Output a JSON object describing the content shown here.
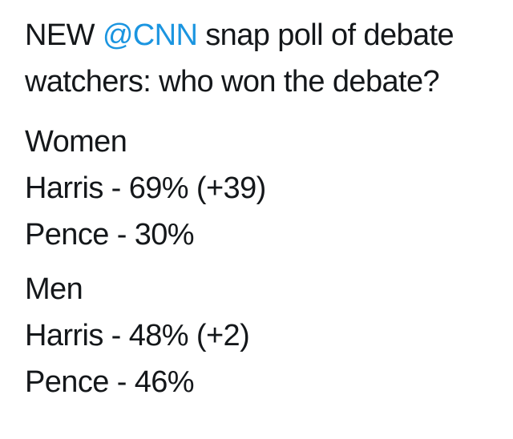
{
  "tweet": {
    "line1_prefix": "NEW ",
    "mention": "@CNN",
    "line1_suffix": " snap poll of debate",
    "line2": "watchers: who won the debate?",
    "groups": [
      {
        "heading": "Women",
        "results": [
          {
            "text": "Harris - 69% (+39)"
          },
          {
            "text": "Pence - 30%"
          }
        ]
      },
      {
        "heading": "Men",
        "results": [
          {
            "text": "Harris - 48% (+2)"
          },
          {
            "text": "Pence - 46%"
          }
        ]
      }
    ]
  },
  "colors": {
    "text": "#14171a",
    "mention": "#1b95e0",
    "background": "#ffffff"
  }
}
